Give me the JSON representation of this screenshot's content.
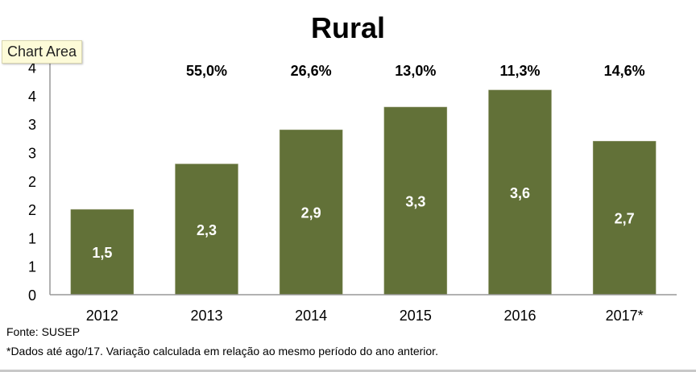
{
  "chart_data": {
    "type": "bar",
    "title": "Rural",
    "categories": [
      "2012",
      "2013",
      "2014",
      "2015",
      "2016",
      "2017*"
    ],
    "values": [
      1.5,
      2.3,
      2.9,
      3.3,
      3.6,
      2.7
    ],
    "value_labels": [
      "1,5",
      "2,3",
      "2,9",
      "3,3",
      "3,6",
      "2,7"
    ],
    "growth_labels": [
      "",
      "55,0%",
      "26,6%",
      "13,0%",
      "11,3%",
      "14,6%"
    ],
    "yticks": [
      0,
      0.5,
      1,
      1.5,
      2,
      2.5,
      3,
      3.5,
      4
    ],
    "ytick_labels": [
      "0",
      "1",
      "1",
      "2",
      "2",
      "3",
      "3",
      "4",
      "4"
    ],
    "ylim": [
      0,
      4.05
    ],
    "xlabel": "",
    "ylabel": "",
    "grid": false,
    "bar_color": "#627138"
  },
  "notes": {
    "source": "Fonte: SUSEP",
    "footnote": "*Dados até ago/17. Variação calculada em relação ao mesmo período do ano anterior."
  },
  "tooltip": "Chart Area"
}
